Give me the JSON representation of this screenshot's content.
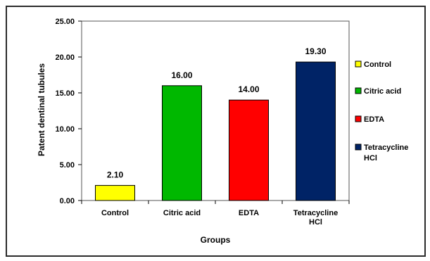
{
  "chart_data": {
    "type": "bar",
    "title": "",
    "xlabel": "Groups",
    "ylabel": "Patent dentinal tubules",
    "ylim": [
      0,
      25
    ],
    "yticks": [
      "0.00",
      "5.00",
      "10.00",
      "15.00",
      "20.00",
      "25.00"
    ],
    "categories": [
      [
        "Control"
      ],
      [
        "Citric acid"
      ],
      [
        "EDTA"
      ],
      [
        "Tetracycline",
        "HCl"
      ]
    ],
    "values": [
      2.1,
      16.0,
      14.0,
      19.3
    ],
    "data_labels": [
      "2.10",
      "16.00",
      "14.00",
      "19.30"
    ],
    "colors": [
      "#ffff00",
      "#00b800",
      "#ff0000",
      "#002366"
    ],
    "legend_position": "right",
    "legend": [
      {
        "label": [
          "Control"
        ],
        "color": "#ffff00"
      },
      {
        "label": [
          "Citric acid"
        ],
        "color": "#00b800"
      },
      {
        "label": [
          "EDTA"
        ],
        "color": "#ff0000"
      },
      {
        "label": [
          "Tetracycline",
          "HCl"
        ],
        "color": "#002366"
      }
    ],
    "grid": false
  }
}
